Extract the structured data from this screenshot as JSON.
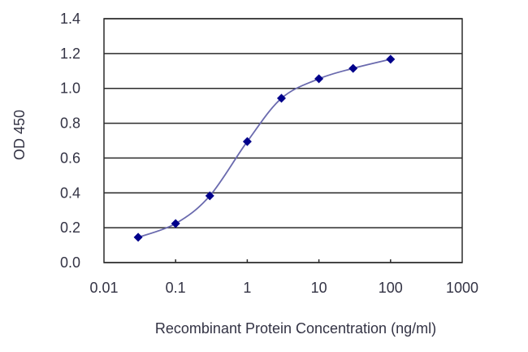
{
  "chart_data": {
    "type": "line",
    "title": "",
    "xlabel": "Recombinant Protein Concentration (ng/ml)",
    "ylabel": "OD 450",
    "xscale": "log",
    "xlim": [
      0.01,
      1000
    ],
    "ylim": [
      0.0,
      1.4
    ],
    "x_ticks": [
      "0.01",
      "0.1",
      "1",
      "10",
      "100",
      "1000"
    ],
    "y_ticks": [
      "0.0",
      "0.2",
      "0.4",
      "0.6",
      "0.8",
      "1.0",
      "1.2",
      "1.4"
    ],
    "grid": {
      "horizontal": true,
      "vertical": false
    },
    "legend": null,
    "series": [
      {
        "name": "OD 450",
        "x": [
          0.03,
          0.1,
          0.3,
          1,
          3,
          10,
          30,
          100
        ],
        "values": [
          0.145,
          0.224,
          0.383,
          0.695,
          0.943,
          1.055,
          1.115,
          1.167
        ],
        "marker": "diamond",
        "marker_color": "#00008b",
        "line_color": "#6a6aae",
        "smooth": true
      }
    ]
  },
  "colors": {
    "background": "#ffffff",
    "gridline": "#2b2b2b",
    "axis": "#2b2b2b",
    "text": "#333344"
  }
}
